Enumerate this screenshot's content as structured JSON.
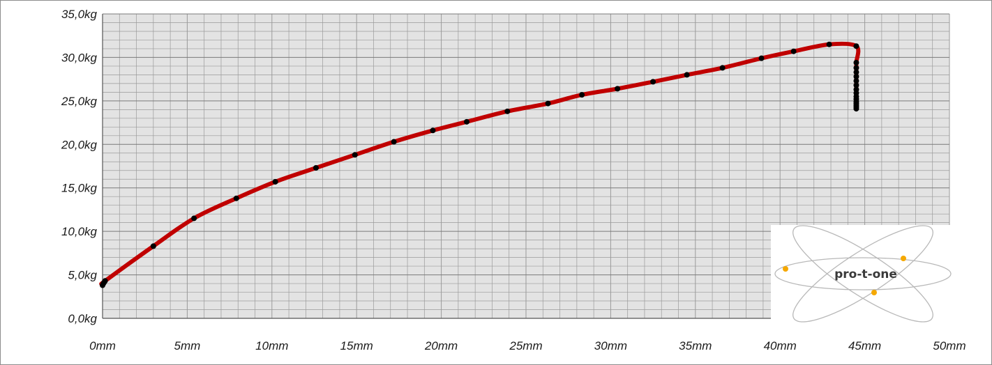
{
  "chart_data": {
    "type": "line",
    "title": "",
    "xlabel": "",
    "ylabel": "",
    "x_unit": "mm",
    "y_unit": "kg",
    "xlim": [
      0,
      50
    ],
    "ylim": [
      0,
      35
    ],
    "x_ticks": [
      0,
      5,
      10,
      15,
      20,
      25,
      30,
      35,
      40,
      45,
      50
    ],
    "y_ticks": [
      0,
      5,
      10,
      15,
      20,
      25,
      30,
      35
    ],
    "x_tick_labels": [
      "0mm",
      "5mm",
      "10mm",
      "15mm",
      "20mm",
      "25mm",
      "30mm",
      "35mm",
      "40mm",
      "45mm",
      "50mm"
    ],
    "y_tick_labels": [
      "0,0kg",
      "5,0kg",
      "10,0kg",
      "15,0kg",
      "20,0kg",
      "25,0kg",
      "30,0kg",
      "35,0kg"
    ],
    "grid": true,
    "minor_grid": true,
    "x_minor_step": 1,
    "y_minor_step": 1,
    "legend": "none",
    "colors": {
      "line": "#c00000",
      "marker": "#000000",
      "plot_background": "#e3e3e3",
      "grid": "#9a9a9a"
    },
    "series": [
      {
        "x": [
          0,
          0.05,
          0.1,
          0.15,
          3.0,
          5.4,
          7.9,
          10.2,
          12.6,
          14.9,
          17.2,
          19.5,
          21.5,
          23.9,
          26.3,
          28.3,
          30.4,
          32.5,
          34.5,
          36.6,
          38.9,
          40.8,
          42.9,
          44.5,
          44.5,
          44.5,
          44.5,
          44.5,
          44.5,
          44.5,
          44.5,
          44.5,
          44.5,
          44.5,
          44.5,
          44.5,
          44.5,
          44.5,
          44.5
        ],
        "y": [
          3.8,
          4.0,
          4.15,
          4.3,
          8.3,
          11.5,
          13.8,
          15.7,
          17.3,
          18.8,
          20.3,
          21.6,
          22.6,
          23.8,
          24.7,
          25.7,
          26.4,
          27.2,
          28.0,
          28.8,
          29.9,
          30.7,
          31.5,
          31.3,
          29.4,
          28.8,
          28.3,
          27.8,
          27.3,
          26.8,
          26.3,
          25.9,
          25.5,
          25.2,
          24.9,
          24.7,
          24.5,
          24.3,
          24.1
        ]
      }
    ]
  },
  "logo": {
    "text": "pro-t-one"
  }
}
